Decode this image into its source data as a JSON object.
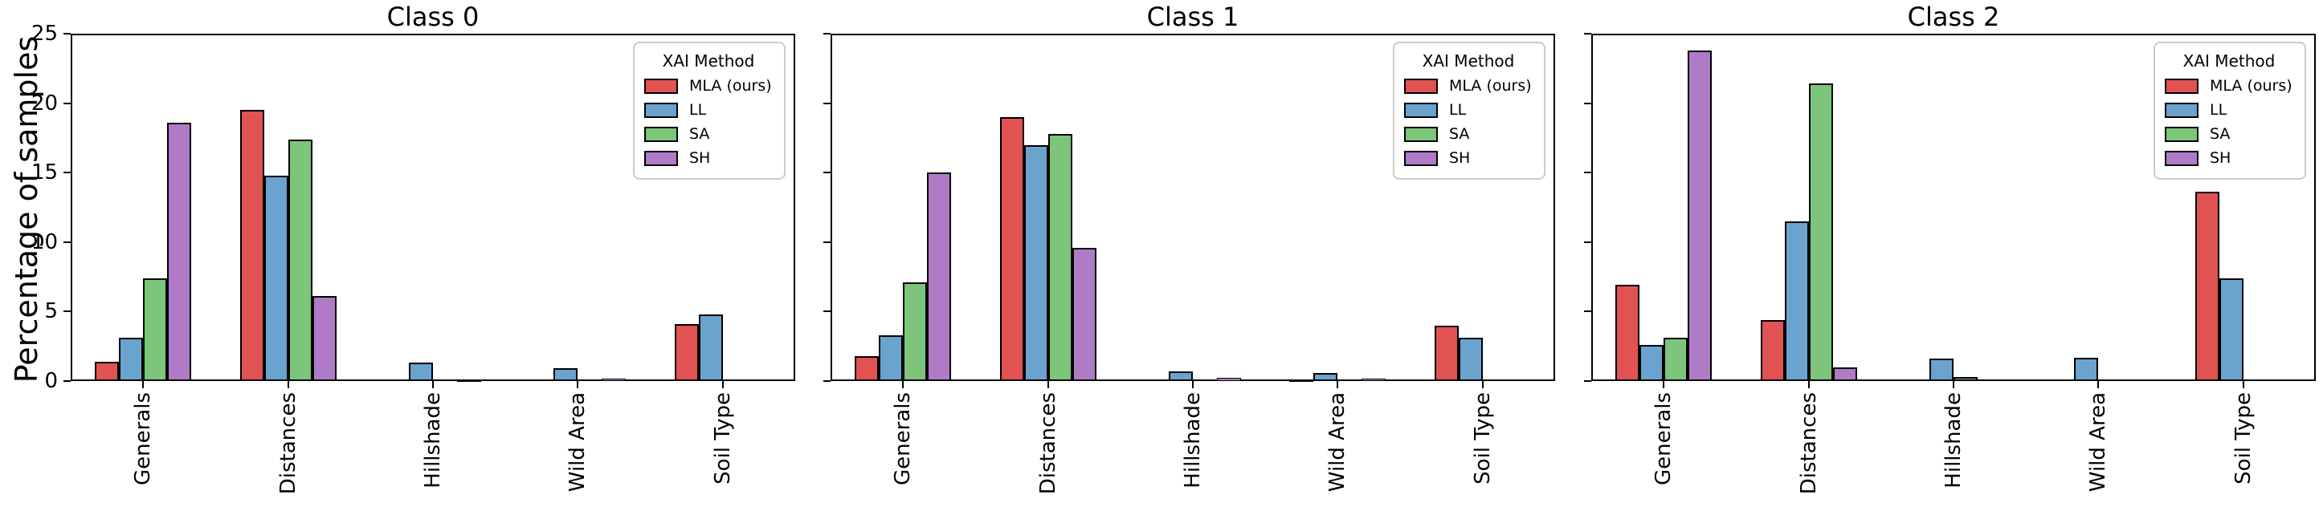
{
  "figure": {
    "ylabel": "Percentage of samples",
    "legend_title": "XAI Method",
    "yticks": [
      "0",
      "5",
      "10",
      "15",
      "20",
      "25"
    ],
    "colors": {
      "series": [
        "#e15253",
        "#6ba3cf",
        "#7cc57b",
        "#af7bc6"
      ],
      "bar_edge": "#000000",
      "axis": "#000000",
      "legend_border": "#cccccc",
      "background": "#ffffff"
    }
  },
  "chart_data": [
    {
      "type": "bar",
      "title": "Class 0",
      "xlabel": "",
      "ylabel": "Percentage of samples",
      "ylim": [
        0,
        25
      ],
      "grid": false,
      "legend_title": "XAI Method",
      "legend_position": "upper right",
      "categories": [
        "Generals",
        "Distances",
        "Hillshade",
        "Wild Area",
        "Soil Type"
      ],
      "series": [
        {
          "name": "MLA (ours)",
          "values": [
            1.4,
            19.5,
            0,
            0,
            4.1
          ]
        },
        {
          "name": "LL",
          "values": [
            3.1,
            14.8,
            1.3,
            0.9,
            4.8
          ]
        },
        {
          "name": "SA",
          "values": [
            7.4,
            17.4,
            0.12,
            0,
            0
          ]
        },
        {
          "name": "SH",
          "values": [
            18.6,
            6.1,
            0.06,
            0.17,
            0
          ]
        }
      ]
    },
    {
      "type": "bar",
      "title": "Class 1",
      "xlabel": "",
      "ylabel": "Percentage of samples",
      "ylim": [
        0,
        25
      ],
      "grid": false,
      "legend_title": "XAI Method",
      "legend_position": "upper right",
      "categories": [
        "Generals",
        "Distances",
        "Hillshade",
        "Wild Area",
        "Soil Type"
      ],
      "series": [
        {
          "name": "MLA (ours)",
          "values": [
            1.8,
            19.0,
            0,
            0.07,
            4.0
          ]
        },
        {
          "name": "LL",
          "values": [
            3.3,
            17.0,
            0.7,
            0.6,
            3.1
          ]
        },
        {
          "name": "SA",
          "values": [
            7.1,
            17.8,
            0.1,
            0,
            0
          ]
        },
        {
          "name": "SH",
          "values": [
            15.0,
            9.6,
            0.25,
            0.16,
            0
          ]
        }
      ]
    },
    {
      "type": "bar",
      "title": "Class 2",
      "xlabel": "",
      "ylabel": "Percentage of samples",
      "ylim": [
        0,
        25
      ],
      "grid": false,
      "legend_title": "XAI Method",
      "legend_position": "upper right",
      "categories": [
        "Generals",
        "Distances",
        "Hillshade",
        "Wild Area",
        "Soil Type"
      ],
      "series": [
        {
          "name": "MLA (ours)",
          "values": [
            6.9,
            4.4,
            0,
            0,
            13.6
          ]
        },
        {
          "name": "LL",
          "values": [
            2.6,
            11.5,
            1.6,
            1.65,
            7.4
          ]
        },
        {
          "name": "SA",
          "values": [
            3.1,
            21.4,
            0.3,
            0,
            0
          ]
        },
        {
          "name": "SH",
          "values": [
            23.8,
            1.0,
            0,
            0,
            0
          ]
        }
      ]
    }
  ]
}
